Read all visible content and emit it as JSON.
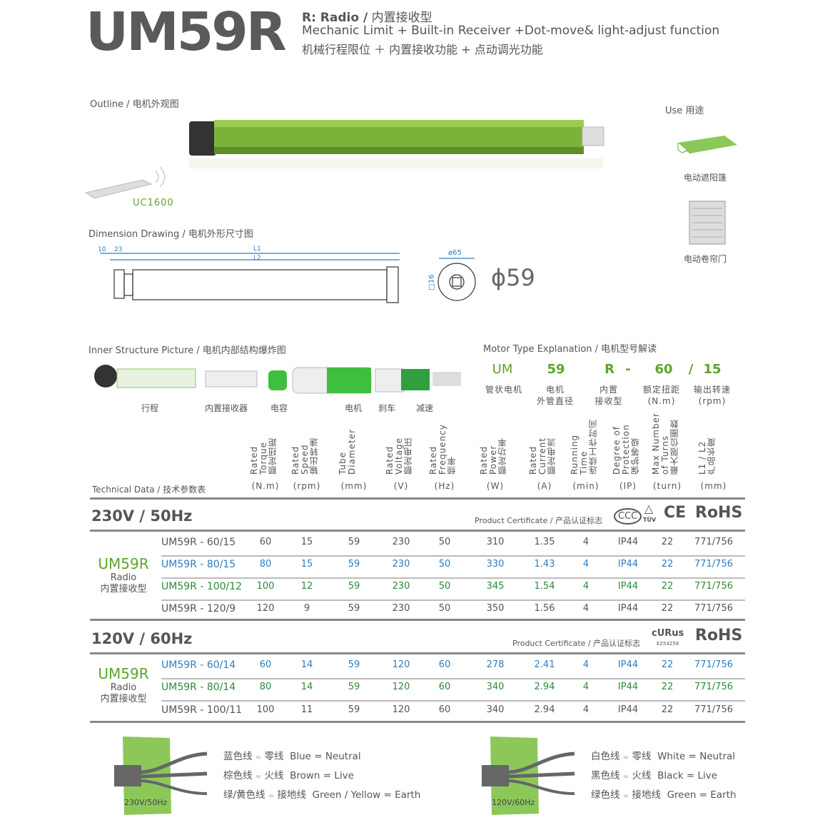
{
  "header": {
    "logo": "UM59R",
    "line1_bold": "R: Radio /",
    "line1_cn": "内置接收型",
    "line2": "Mechanic Limit + Built-in Receiver +Dot-move& light-adjust function",
    "line3": "机械行程限位 ＋ 内置接收功能 + 点动调光功能"
  },
  "outline": {
    "title": "Outline / 电机外观图",
    "remote_label": "UC1600"
  },
  "use": {
    "title": "Use 用途",
    "items": [
      "电动遮阳篷",
      "电动卷帘门"
    ]
  },
  "dimension": {
    "title": "Dimension Drawing / 电机外形尺寸图",
    "labels": {
      "a": "10",
      "b": "23",
      "l1": "L1",
      "l2": "L2",
      "d65": "ø65",
      "d16": "□16",
      "tube": "ϕ59"
    }
  },
  "inner": {
    "title": "Inner Structure Picture / 电机内部结构爆炸图",
    "parts": [
      "行程",
      "内置接收器",
      "电容",
      "电机",
      "刹车",
      "减速"
    ]
  },
  "motor_type": {
    "title": "Motor Type Explanation / 电机型号解读",
    "codes": [
      "UM",
      "59",
      "R",
      "-",
      "60",
      "/",
      "15"
    ],
    "meanings": [
      [
        "管状电机"
      ],
      [
        "电机",
        "外管直径"
      ],
      [
        "内置",
        "接收型"
      ],
      [
        "额定扭距",
        "(N.m)"
      ],
      [
        "输出转速",
        "(rpm)"
      ]
    ]
  },
  "tech": {
    "title": "Technical Data / 技术参数表",
    "columns": [
      {
        "name": "Rated\nTorque\n额定扭距",
        "unit": "(N.m)"
      },
      {
        "name": "Rated\nSpeed\n输出转速",
        "unit": "(rpm)"
      },
      {
        "name": "Tube\nDiameter",
        "unit": "(mm)"
      },
      {
        "name": "Rated\nVoltage\n额定电压",
        "unit": "(V)"
      },
      {
        "name": "Rated\nFrequency\n频率",
        "unit": "(Hz)"
      },
      {
        "name": "Rated\nPower\n额定功率",
        "unit": "(W)"
      },
      {
        "name": "Rated\nCurrent\n额定电流",
        "unit": "(A)"
      },
      {
        "name": "Running\nTime\n连续工作时间",
        "unit": "(min)"
      },
      {
        "name": "Degree of\nProtection\n保护等级",
        "unit": "(IP)"
      },
      {
        "name": "Max Number\nof Turns\n最大限位圈数",
        "unit": "(turn)"
      },
      {
        "name": "L1 / L2\n产品长度",
        "unit": "(mm)"
      }
    ],
    "groups": [
      {
        "voltage": "230V / 50Hz",
        "cert_label": "Product Certificate / 产品认证标志",
        "cert_marks": [
          "CCC",
          "TÜV",
          "CE",
          "RoHS"
        ],
        "model": "UM59R",
        "sub": "Radio",
        "sub_cn": "内置接收型",
        "rows": [
          {
            "color": "gray",
            "model": "UM59R - 60/15",
            "values": [
              "60",
              "15",
              "59",
              "230",
              "50",
              "310",
              "1.35",
              "4",
              "IP44",
              "22",
              "771/756"
            ]
          },
          {
            "color": "blue",
            "model": "UM59R - 80/15",
            "values": [
              "80",
              "15",
              "59",
              "230",
              "50",
              "330",
              "1.43",
              "4",
              "IP44",
              "22",
              "771/756"
            ]
          },
          {
            "color": "green",
            "model": "UM59R - 100/12",
            "values": [
              "100",
              "12",
              "59",
              "230",
              "50",
              "345",
              "1.54",
              "4",
              "IP44",
              "22",
              "771/756"
            ]
          },
          {
            "color": "gray",
            "model": "UM59R - 120/9",
            "values": [
              "120",
              "9",
              "59",
              "230",
              "50",
              "350",
              "1.56",
              "4",
              "IP44",
              "22",
              "771/756"
            ]
          }
        ]
      },
      {
        "voltage": "120V / 60Hz",
        "cert_label": "Product Certificate / 产品认证标志",
        "cert_marks": [
          "cURus",
          "E254258",
          "RoHS"
        ],
        "model": "UM59R",
        "sub": "Radio",
        "sub_cn": "内置接收型",
        "rows": [
          {
            "color": "blue",
            "model": "UM59R - 60/14",
            "values": [
              "60",
              "14",
              "59",
              "120",
              "60",
              "278",
              "2.41",
              "4",
              "IP44",
              "22",
              "771/756"
            ]
          },
          {
            "color": "green",
            "model": "UM59R - 80/14",
            "values": [
              "80",
              "14",
              "59",
              "120",
              "60",
              "340",
              "2.94",
              "4",
              "IP44",
              "22",
              "771/756"
            ]
          },
          {
            "color": "gray",
            "model": "UM59R - 100/11",
            "values": [
              "100",
              "11",
              "59",
              "120",
              "60",
              "340",
              "2.94",
              "4",
              "IP44",
              "22",
              "771/756"
            ]
          }
        ]
      }
    ]
  },
  "wiring": [
    {
      "label": "230V/50Hz",
      "lines": [
        [
          "蓝色线",
          "零线",
          "Blue = Neutral"
        ],
        [
          "棕色线",
          "火线",
          "Brown = Live"
        ],
        [
          "绿/黄色线",
          "接地线",
          "Green / Yellow = Earth"
        ]
      ]
    },
    {
      "label": "120V/60Hz",
      "lines": [
        [
          "白色线",
          "零线",
          "White = Neutral"
        ],
        [
          "黑色线",
          "火线",
          "Black = Live"
        ],
        [
          "绿色线",
          "接地线",
          "Green = Earth"
        ]
      ]
    }
  ],
  "colors": {
    "brand_green": "#5ca52c",
    "tube_green": "#7db23a",
    "row_blue": "#2e7cc0",
    "row_green": "#2b8a3a",
    "text_gray": "#555555"
  }
}
